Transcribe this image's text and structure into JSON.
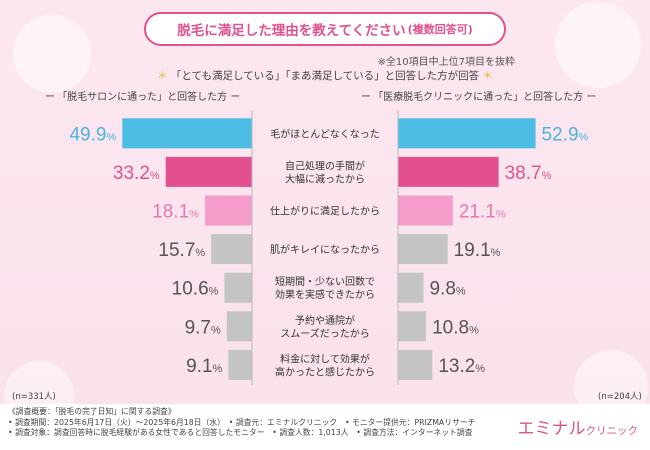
{
  "title": "脱毛に満足した理由を教えてください",
  "title_sub": "(複数回答可)",
  "note_top": "※全10項目中上位7項目を抜粋",
  "note_star_left": "＊",
  "note_main": "「とても満足している」「まあ満足している」と回答した方が回答",
  "note_star_right": "＊",
  "left_group_label": "「脱毛サロンに通った」と回答した方",
  "right_group_label": "「医療脱毛クリニックに通った」と回答した方",
  "dash": "ー",
  "n_left": "(n=331人)",
  "n_right": "(n=204人)",
  "footer_lines": [
    "《調査概要：「脱毛の完了日知」に関する調査》",
    "• 調査期間：2025年6月17日（火）～2025年6月18日（水）　• 調査元：エミナルクリニック　• モニター提供元：PRIZMAリサーチ",
    "• 調査対象：調査回答時に脱毛経験がある女性であると回答したモニター　• 調査人数：1,013人　• 調査方法：インターネット調査"
  ],
  "logo_main": "エミナル",
  "logo_sub": "クリニック",
  "colors": {
    "accent": "#e2508f",
    "top_left": "#4dbce4",
    "top_right": "#4dbce4",
    "second": "#e2508f",
    "third": "#f59ccb",
    "rest": "#c4c4c4",
    "pct_top": "#4bb3df",
    "pct_second": "#e2508f",
    "pct_third": "#ec75b1",
    "pct_rest": "#555555"
  },
  "chart_data": {
    "type": "bar",
    "orientation": "horizontal-butterfly",
    "categories": [
      "毛がほとんどなくなった",
      "自己処理の手間が\n大幅に減ったから",
      "仕上がりに満足したから",
      "肌がキレイになったから",
      "短期間・少ない回数で\n効果を実感できたから",
      "予約や通院が\nスムーズだったから",
      "料金に対して効果が\n高かったと感じたから"
    ],
    "unit": "%",
    "series": [
      {
        "name": "「脱毛サロンに通った」と回答した方",
        "values": [
          49.9,
          33.2,
          18.1,
          15.7,
          10.6,
          9.7,
          9.1
        ]
      },
      {
        "name": "「医療脱毛クリニックに通った」と回答した方",
        "values": [
          52.9,
          38.7,
          21.1,
          19.1,
          9.8,
          10.8,
          13.2
        ]
      }
    ],
    "xlim": [
      0,
      55
    ]
  }
}
